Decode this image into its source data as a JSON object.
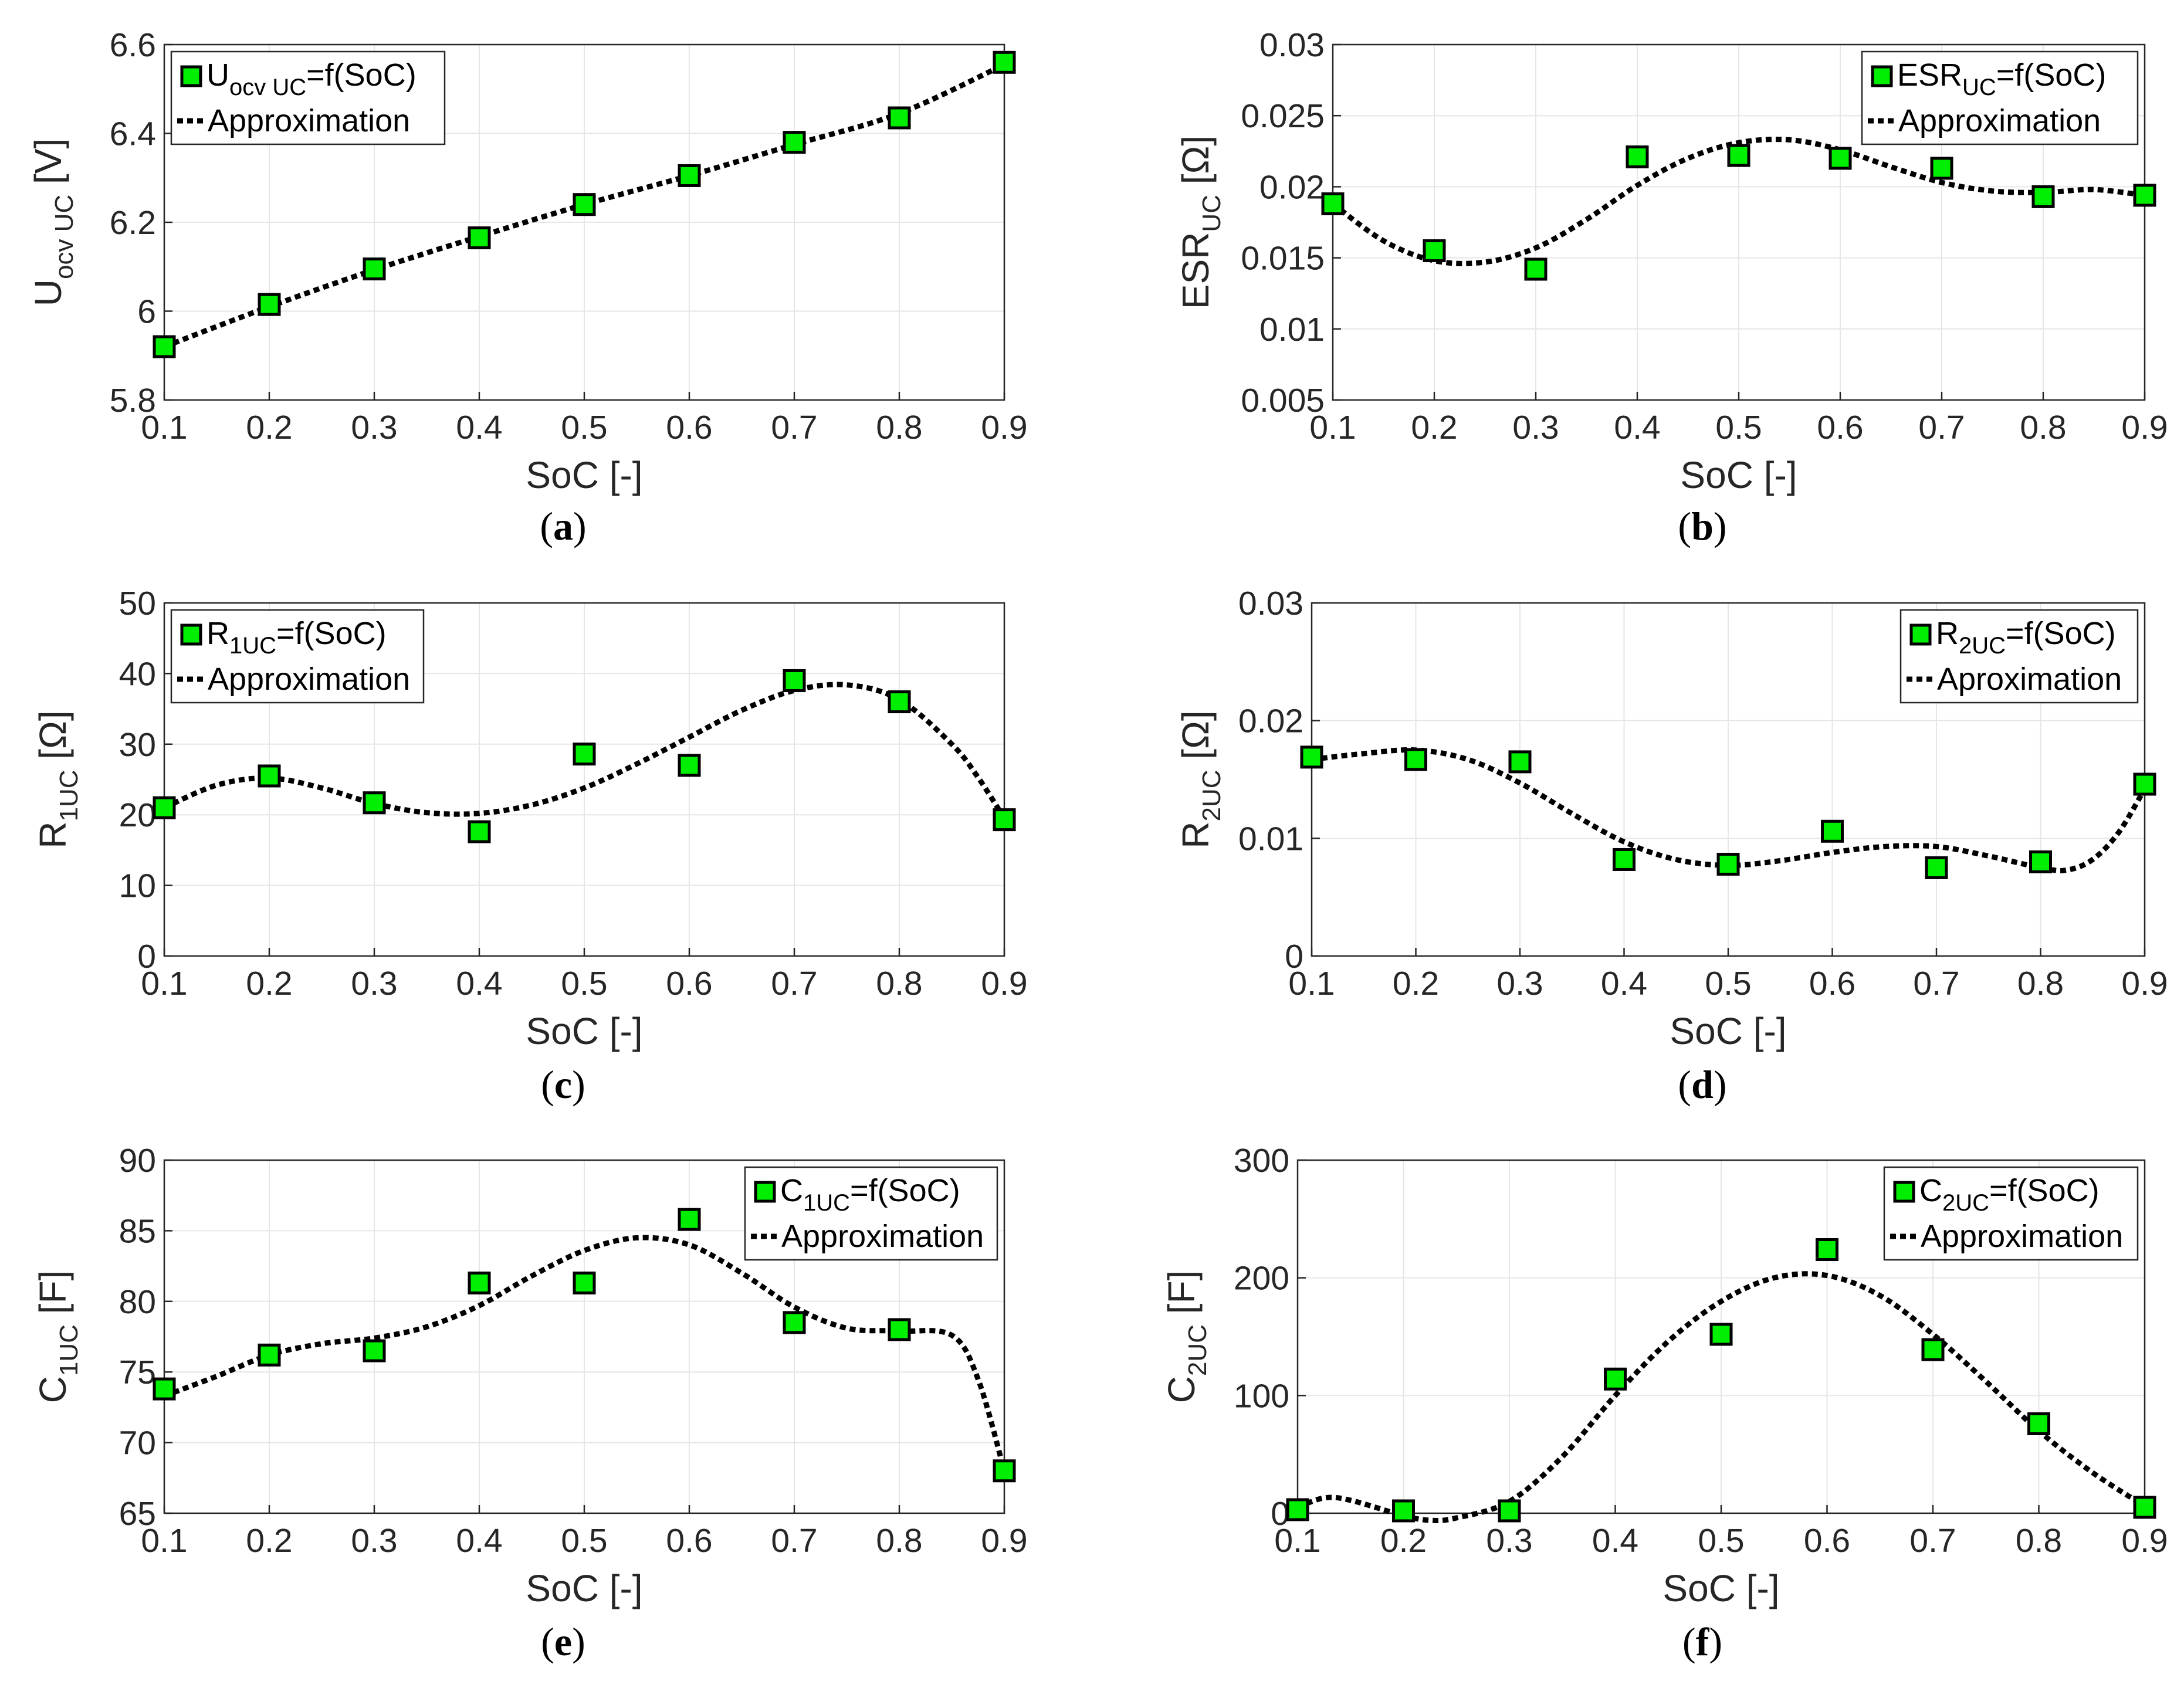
{
  "chart_data": [
    {
      "id": "a",
      "type": "scatter",
      "xlabel": "SoC [-]",
      "ylabel": {
        "main": "U",
        "sub": "ocv UC",
        "unit": " [V]"
      },
      "xlim": [
        0.1,
        0.9
      ],
      "ylim": [
        5.8,
        6.6
      ],
      "xticks": [
        "0.1",
        "0.2",
        "0.3",
        "0.4",
        "0.5",
        "0.6",
        "0.7",
        "0.8",
        "0.9"
      ],
      "yticks": [
        "5.8",
        "6",
        "6.2",
        "6.4",
        "6.6"
      ],
      "x": [
        0.1,
        0.2,
        0.3,
        0.4,
        0.5,
        0.6,
        0.7,
        0.8,
        0.9
      ],
      "values": [
        5.92,
        6.015,
        6.095,
        6.165,
        6.24,
        6.305,
        6.38,
        6.435,
        6.56
      ],
      "approx": [
        [
          0.1,
          5.92
        ],
        [
          0.2,
          6.01
        ],
        [
          0.3,
          6.093
        ],
        [
          0.4,
          6.168
        ],
        [
          0.5,
          6.24
        ],
        [
          0.6,
          6.305
        ],
        [
          0.7,
          6.375
        ],
        [
          0.8,
          6.445
        ],
        [
          0.9,
          6.555
        ]
      ],
      "legend": {
        "position": "top-left",
        "marker_label": {
          "main": "U",
          "sub": "ocv UC",
          "rest": "=f(SoC)"
        },
        "line_label": "Approximation"
      },
      "caption": "a"
    },
    {
      "id": "b",
      "type": "scatter",
      "xlabel": "SoC [-]",
      "ylabel": {
        "main": "ESR",
        "sub": "UC",
        "unit": " [Ω]"
      },
      "xlim": [
        0.1,
        0.9
      ],
      "ylim": [
        0.005,
        0.03
      ],
      "xticks": [
        "0.1",
        "0.2",
        "0.3",
        "0.4",
        "0.5",
        "0.6",
        "0.7",
        "0.8",
        "0.9"
      ],
      "yticks": [
        "0.005",
        "0.01",
        "0.015",
        "0.02",
        "0.025",
        "0.03"
      ],
      "x": [
        0.1,
        0.2,
        0.3,
        0.4,
        0.5,
        0.6,
        0.7,
        0.8,
        0.9
      ],
      "values": [
        0.0188,
        0.0155,
        0.0142,
        0.0221,
        0.0222,
        0.022,
        0.0213,
        0.0193,
        0.0194
      ],
      "approx": [
        [
          0.1,
          0.0188
        ],
        [
          0.15,
          0.0162
        ],
        [
          0.2,
          0.0148
        ],
        [
          0.25,
          0.0147
        ],
        [
          0.3,
          0.0157
        ],
        [
          0.35,
          0.0177
        ],
        [
          0.4,
          0.0201
        ],
        [
          0.45,
          0.022
        ],
        [
          0.5,
          0.0231
        ],
        [
          0.55,
          0.0233
        ],
        [
          0.6,
          0.0226
        ],
        [
          0.65,
          0.0214
        ],
        [
          0.7,
          0.0203
        ],
        [
          0.75,
          0.0197
        ],
        [
          0.8,
          0.0196
        ],
        [
          0.85,
          0.0198
        ],
        [
          0.9,
          0.0194
        ]
      ],
      "legend": {
        "position": "top-right",
        "marker_label": {
          "main": "ESR",
          "sub": "UC",
          "rest": "=f(SoC)"
        },
        "line_label": "Approximation"
      },
      "caption": "b"
    },
    {
      "id": "c",
      "type": "scatter",
      "xlabel": "SoC [-]",
      "ylabel": {
        "main": "R",
        "sub": "1UC",
        "unit": " [Ω]"
      },
      "xlim": [
        0.1,
        0.9
      ],
      "ylim": [
        0,
        50
      ],
      "xticks": [
        "0.1",
        "0.2",
        "0.3",
        "0.4",
        "0.5",
        "0.6",
        "0.7",
        "0.8",
        "0.9"
      ],
      "yticks": [
        "0",
        "10",
        "20",
        "30",
        "40",
        "50"
      ],
      "x": [
        0.1,
        0.2,
        0.3,
        0.4,
        0.5,
        0.6,
        0.7,
        0.8,
        0.9
      ],
      "values": [
        21,
        25.5,
        21.7,
        17.6,
        28.6,
        27,
        39,
        36,
        19.3
      ],
      "approx": [
        [
          0.1,
          21
        ],
        [
          0.15,
          24.2
        ],
        [
          0.2,
          25.2
        ],
        [
          0.25,
          23.8
        ],
        [
          0.3,
          21.6
        ],
        [
          0.35,
          20.3
        ],
        [
          0.4,
          20.2
        ],
        [
          0.45,
          21.4
        ],
        [
          0.5,
          23.8
        ],
        [
          0.55,
          27.2
        ],
        [
          0.6,
          31
        ],
        [
          0.65,
          34.8
        ],
        [
          0.7,
          37.6
        ],
        [
          0.75,
          38.4
        ],
        [
          0.8,
          36.3
        ],
        [
          0.85,
          30
        ],
        [
          0.875,
          25.3
        ],
        [
          0.9,
          19.5
        ]
      ],
      "legend": {
        "position": "top-left",
        "marker_label": {
          "main": "R",
          "sub": "1UC",
          "rest": "=f(SoC)"
        },
        "line_label": "Approximation"
      },
      "caption": "c"
    },
    {
      "id": "d",
      "type": "scatter",
      "xlabel": "SoC [-]",
      "ylabel": {
        "main": "R",
        "sub": "2UC",
        "unit": " [Ω]"
      },
      "xlim": [
        0.1,
        0.9
      ],
      "ylim": [
        0,
        0.03
      ],
      "xticks": [
        "0.1",
        "0.2",
        "0.3",
        "0.4",
        "0.5",
        "0.6",
        "0.7",
        "0.8",
        "0.9"
      ],
      "yticks": [
        "0",
        "0.01",
        "0.02",
        "0.03"
      ],
      "x": [
        0.1,
        0.2,
        0.3,
        0.4,
        0.5,
        0.6,
        0.7,
        0.8,
        0.9
      ],
      "values": [
        0.0169,
        0.0167,
        0.0165,
        0.0082,
        0.0078,
        0.0106,
        0.0075,
        0.008,
        0.0146
      ],
      "approx": [
        [
          0.1,
          0.0167
        ],
        [
          0.15,
          0.0172
        ],
        [
          0.2,
          0.0175
        ],
        [
          0.25,
          0.0167
        ],
        [
          0.3,
          0.0147
        ],
        [
          0.35,
          0.0121
        ],
        [
          0.4,
          0.0097
        ],
        [
          0.45,
          0.0082
        ],
        [
          0.5,
          0.0077
        ],
        [
          0.55,
          0.0081
        ],
        [
          0.6,
          0.0088
        ],
        [
          0.65,
          0.0093
        ],
        [
          0.7,
          0.0093
        ],
        [
          0.75,
          0.0085
        ],
        [
          0.8,
          0.0075
        ],
        [
          0.825,
          0.0073
        ],
        [
          0.85,
          0.0082
        ],
        [
          0.875,
          0.0105
        ],
        [
          0.9,
          0.0142
        ]
      ],
      "legend": {
        "position": "top-right",
        "marker_label": {
          "main": "R",
          "sub": "2UC",
          "rest": "=f(SoC)"
        },
        "line_label": "Aproximation"
      },
      "caption": "d"
    },
    {
      "id": "e",
      "type": "scatter",
      "xlabel": "SoC [-]",
      "ylabel": {
        "main": "C",
        "sub": "1UC",
        "unit": " [F]"
      },
      "xlim": [
        0.1,
        0.9
      ],
      "ylim": [
        65,
        90
      ],
      "xticks": [
        "0.1",
        "0.2",
        "0.3",
        "0.4",
        "0.5",
        "0.6",
        "0.7",
        "0.8",
        "0.9"
      ],
      "yticks": [
        "65",
        "70",
        "75",
        "80",
        "85",
        "90"
      ],
      "x": [
        0.1,
        0.2,
        0.3,
        0.4,
        0.5,
        0.6,
        0.7,
        0.8,
        0.9
      ],
      "values": [
        73.8,
        76.2,
        76.5,
        81.3,
        81.3,
        85.8,
        78.5,
        78,
        68
      ],
      "approx": [
        [
          0.1,
          73.3
        ],
        [
          0.15,
          74.7
        ],
        [
          0.2,
          76.2
        ],
        [
          0.25,
          77
        ],
        [
          0.3,
          77.4
        ],
        [
          0.35,
          78.2
        ],
        [
          0.4,
          79.7
        ],
        [
          0.45,
          81.8
        ],
        [
          0.5,
          83.6
        ],
        [
          0.55,
          84.5
        ],
        [
          0.6,
          84
        ],
        [
          0.65,
          82
        ],
        [
          0.7,
          79.6
        ],
        [
          0.75,
          78.1
        ],
        [
          0.8,
          77.9
        ],
        [
          0.85,
          77.6
        ],
        [
          0.875,
          74.5
        ],
        [
          0.9,
          68
        ]
      ],
      "legend": {
        "position": "top-right",
        "marker_label": {
          "main": "C",
          "sub": "1UC",
          "rest": "=f(SoC)"
        },
        "line_label": "Approximation"
      },
      "caption": "e"
    },
    {
      "id": "f",
      "type": "scatter",
      "xlabel": "SoC [-]",
      "ylabel": {
        "main": "C",
        "sub": "2UC",
        "unit": " [F]"
      },
      "xlim": [
        0.1,
        0.9
      ],
      "ylim": [
        0,
        300
      ],
      "xticks": [
        "0.1",
        "0.2",
        "0.3",
        "0.4",
        "0.5",
        "0.6",
        "0.7",
        "0.8",
        "0.9"
      ],
      "yticks": [
        "0",
        "100",
        "200",
        "300"
      ],
      "x": [
        0.1,
        0.2,
        0.3,
        0.4,
        0.5,
        0.6,
        0.7,
        0.8,
        0.9
      ],
      "values": [
        3,
        2,
        2,
        114,
        152,
        224,
        139,
        76,
        5
      ],
      "approx": [
        [
          0.1,
          5
        ],
        [
          0.125,
          13
        ],
        [
          0.15,
          11
        ],
        [
          0.2,
          -2
        ],
        [
          0.225,
          -6
        ],
        [
          0.25,
          -4
        ],
        [
          0.3,
          10
        ],
        [
          0.35,
          48
        ],
        [
          0.4,
          100
        ],
        [
          0.45,
          146
        ],
        [
          0.5,
          180
        ],
        [
          0.55,
          200
        ],
        [
          0.6,
          202
        ],
        [
          0.65,
          185
        ],
        [
          0.7,
          152
        ],
        [
          0.75,
          112
        ],
        [
          0.8,
          70
        ],
        [
          0.85,
          35
        ],
        [
          0.9,
          6
        ]
      ],
      "legend": {
        "position": "top-right",
        "marker_label": {
          "main": "C",
          "sub": "2UC",
          "rest": "=f(SoC)"
        },
        "line_label": "Approximation"
      },
      "caption": "f"
    }
  ]
}
